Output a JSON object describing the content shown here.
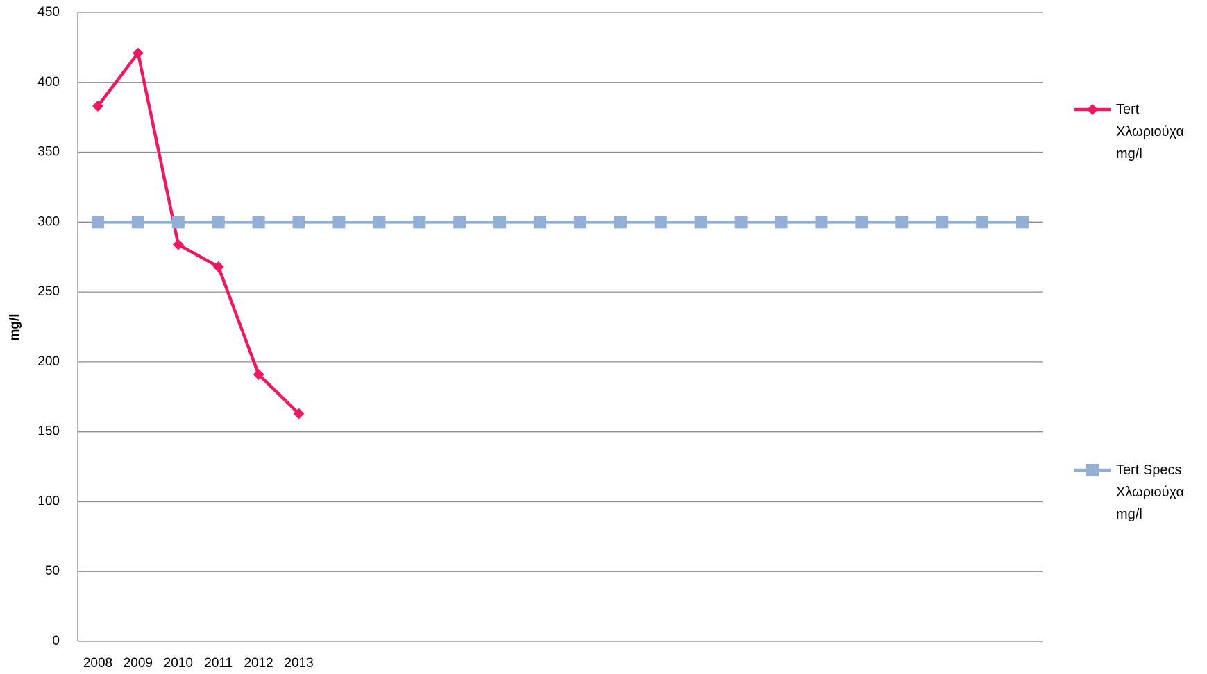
{
  "chart_data": {
    "type": "line",
    "y_label": "mg/l",
    "categories": [
      "2008",
      "2009",
      "2010",
      "2011",
      "2012",
      "2013",
      null,
      null,
      null,
      null,
      null,
      null,
      null,
      null,
      null,
      null,
      null,
      null,
      null,
      null,
      null,
      null,
      null,
      null
    ],
    "series": [
      {
        "name": "Tert Χλωριούχα mg/l",
        "color": "#f0185f",
        "marker": "diamond",
        "values": [
          383,
          421,
          284,
          268,
          191,
          163,
          null,
          null,
          null,
          null,
          null,
          null,
          null,
          null,
          null,
          null,
          null,
          null,
          null,
          null,
          null,
          null,
          null,
          null
        ]
      },
      {
        "name": "Tert Specs Χλωριούχα mg/l",
        "color": "#93afd6",
        "marker": "square",
        "values": [
          300,
          300,
          300,
          300,
          300,
          300,
          300,
          300,
          300,
          300,
          300,
          300,
          300,
          300,
          300,
          300,
          300,
          300,
          300,
          300,
          300,
          300,
          300,
          300
        ]
      }
    ],
    "ylim": [
      0,
      450
    ],
    "yticks": [
      0,
      50,
      100,
      150,
      200,
      250,
      300,
      350,
      400,
      450
    ],
    "grid": true
  }
}
